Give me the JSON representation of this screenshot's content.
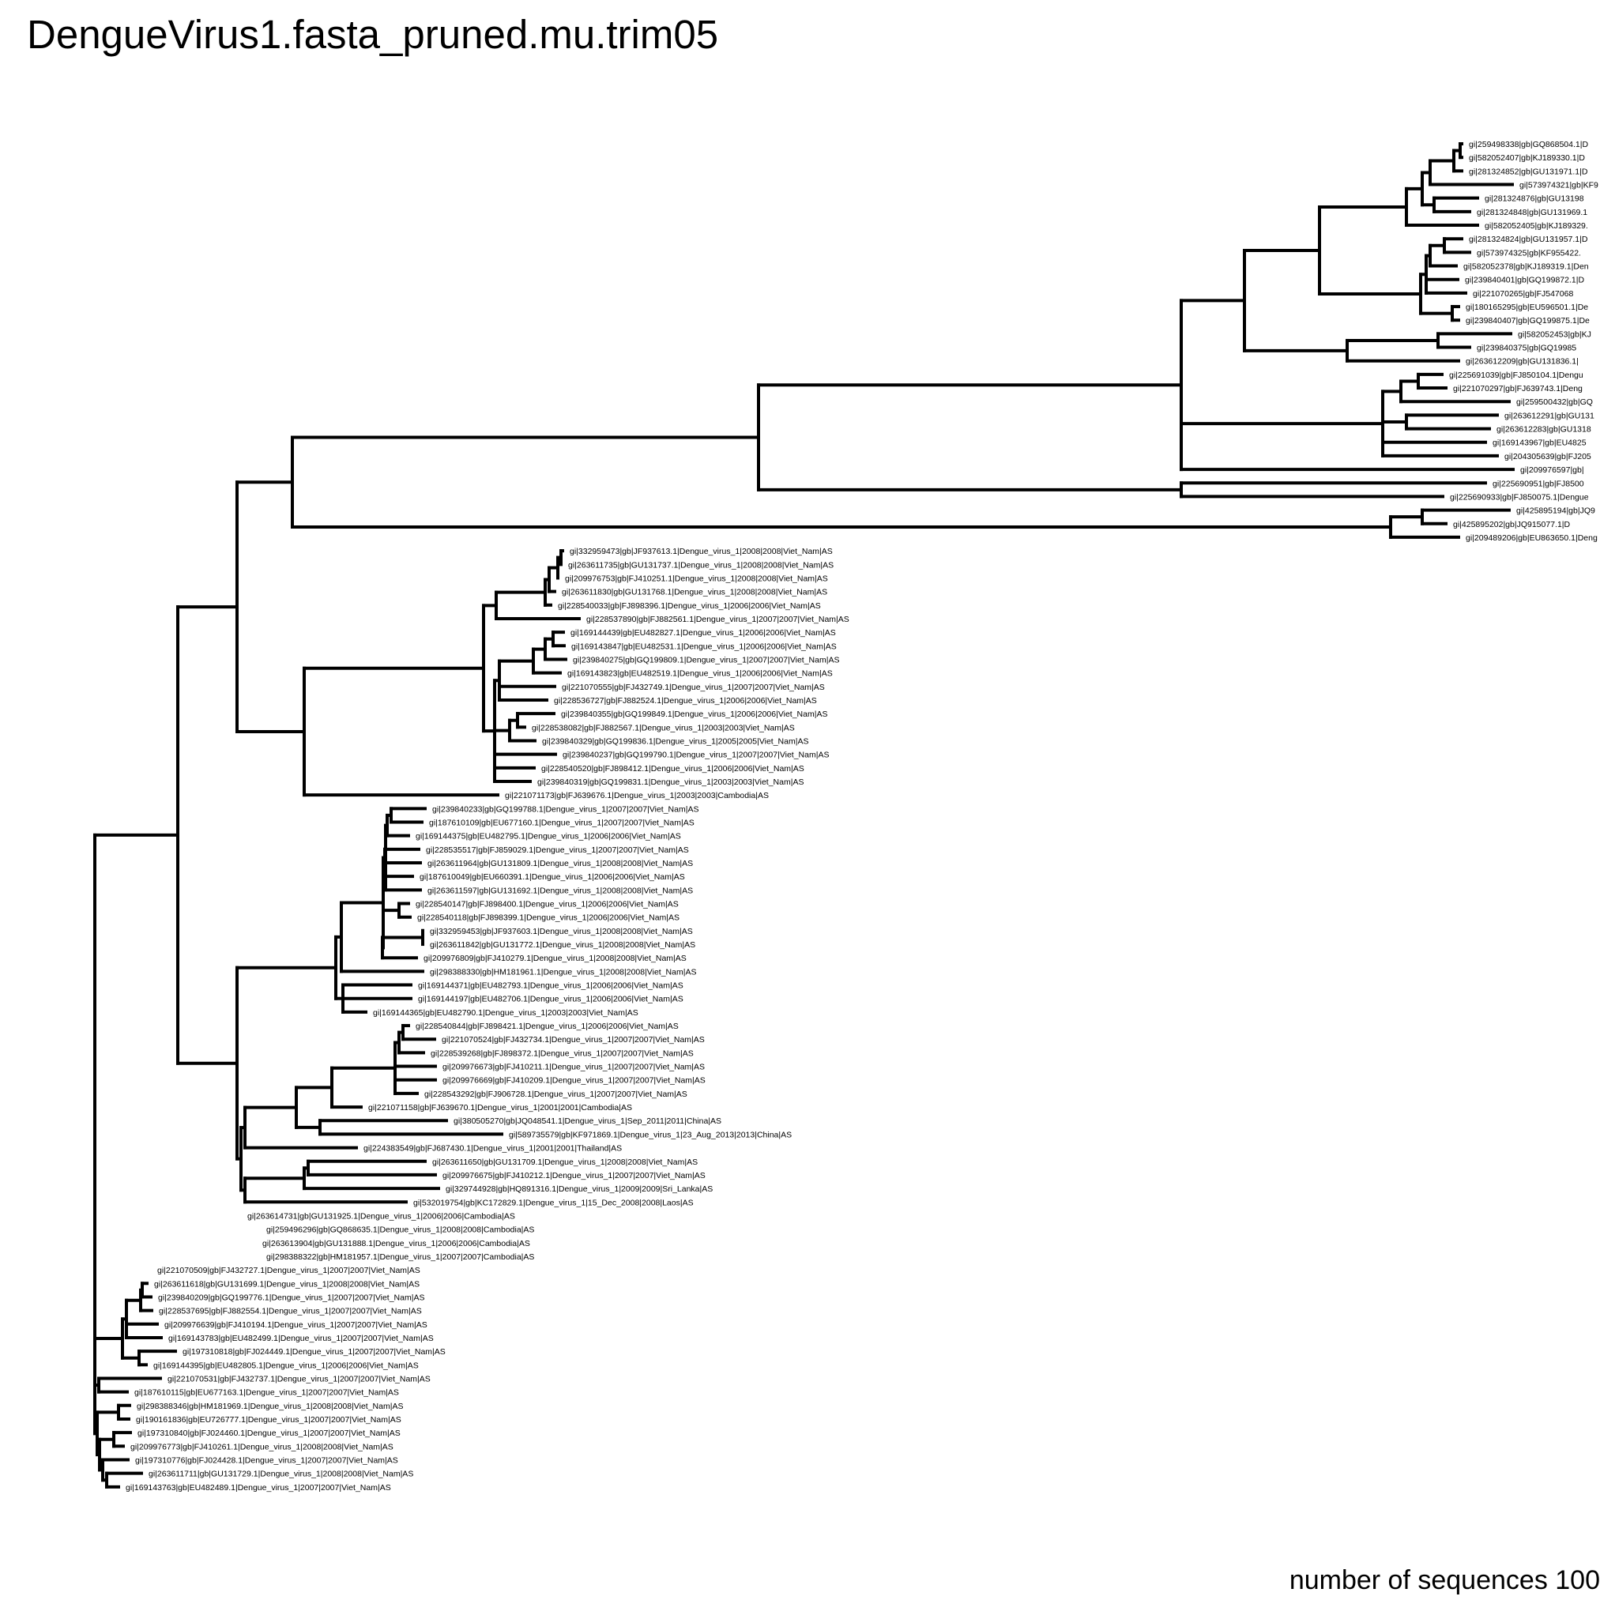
{
  "title": "DengueVirus1.fasta_pruned.mu.trim05",
  "footer": "number of sequences 100",
  "line_color": "#000000",
  "tips": [
    "gi|259498338|gb|GQ868504.1|D",
    "gi|582052407|gb|KJ189330.1|D",
    "gi|281324852|gb|GU131971.1|D",
    "gi|573974321|gb|KF9",
    "gi|281324876|gb|GU13198",
    "gi|281324848|gb|GU131969.1",
    "gi|582052405|gb|KJ189329.",
    "gi|281324824|gb|GU131957.1|D",
    "gi|573974325|gb|KF955422.",
    "gi|582052378|gb|KJ189319.1|Den",
    "gi|239840401|gb|GQ199872.1|D",
    "gi|221070265|gb|FJ547068",
    "gi|180165295|gb|EU596501.1|De",
    "gi|239840407|gb|GQ199875.1|De",
    "gi|582052453|gb|KJ",
    "gi|239840375|gb|GQ19985",
    "gi|263612209|gb|GU131836.1|",
    "gi|225691039|gb|FJ850104.1|Dengu",
    "gi|221070297|gb|FJ639743.1|Deng",
    "gi|259500432|gb|GQ",
    "gi|263612291|gb|GU131",
    "gi|263612283|gb|GU1318",
    "gi|169143967|gb|EU4825",
    "gi|204305639|gb|FJ205",
    "gi|209976597|gb|",
    "gi|225690951|gb|FJ8500",
    "gi|225690933|gb|FJ850075.1|Dengue",
    "gi|425895194|gb|JQ9",
    "gi|425895202|gb|JQ915077.1|D",
    "gi|209489206|gb|EU863650.1|Deng",
    "gi|332959473|gb|JF937613.1|Dengue_virus_1|2008|2008|Viet_Nam|AS",
    "gi|263611735|gb|GU131737.1|Dengue_virus_1|2008|2008|Viet_Nam|AS",
    "gi|209976753|gb|FJ410251.1|Dengue_virus_1|2008|2008|Viet_Nam|AS",
    "gi|263611830|gb|GU131768.1|Dengue_virus_1|2008|2008|Viet_Nam|AS",
    "gi|228540033|gb|FJ898396.1|Dengue_virus_1|2006|2006|Viet_Nam|AS",
    "gi|228537890|gb|FJ882561.1|Dengue_virus_1|2007|2007|Viet_Nam|AS",
    "gi|169144439|gb|EU482827.1|Dengue_virus_1|2006|2006|Viet_Nam|AS",
    "gi|169143847|gb|EU482531.1|Dengue_virus_1|2006|2006|Viet_Nam|AS",
    "gi|239840275|gb|GQ199809.1|Dengue_virus_1|2007|2007|Viet_Nam|AS",
    "gi|169143823|gb|EU482519.1|Dengue_virus_1|2006|2006|Viet_Nam|AS",
    "gi|221070555|gb|FJ432749.1|Dengue_virus_1|2007|2007|Viet_Nam|AS",
    "gi|228536727|gb|FJ882524.1|Dengue_virus_1|2006|2006|Viet_Nam|AS",
    "gi|239840355|gb|GQ199849.1|Dengue_virus_1|2006|2006|Viet_Nam|AS",
    "gi|228538082|gb|FJ882567.1|Dengue_virus_1|2003|2003|Viet_Nam|AS",
    "gi|239840329|gb|GQ199836.1|Dengue_virus_1|2005|2005|Viet_Nam|AS",
    "gi|239840237|gb|GQ199790.1|Dengue_virus_1|2007|2007|Viet_Nam|AS",
    "gi|228540520|gb|FJ898412.1|Dengue_virus_1|2006|2006|Viet_Nam|AS",
    "gi|239840319|gb|GQ199831.1|Dengue_virus_1|2003|2003|Viet_Nam|AS",
    "gi|221071173|gb|FJ639676.1|Dengue_virus_1|2003|2003|Cambodia|AS",
    "gi|239840233|gb|GQ199788.1|Dengue_virus_1|2007|2007|Viet_Nam|AS",
    "gi|187610109|gb|EU677160.1|Dengue_virus_1|2007|2007|Viet_Nam|AS",
    "gi|169144375|gb|EU482795.1|Dengue_virus_1|2006|2006|Viet_Nam|AS",
    "gi|228535517|gb|FJ859029.1|Dengue_virus_1|2007|2007|Viet_Nam|AS",
    "gi|263611964|gb|GU131809.1|Dengue_virus_1|2008|2008|Viet_Nam|AS",
    "gi|187610049|gb|EU660391.1|Dengue_virus_1|2006|2006|Viet_Nam|AS",
    "gi|263611597|gb|GU131692.1|Dengue_virus_1|2008|2008|Viet_Nam|AS",
    "gi|228540147|gb|FJ898400.1|Dengue_virus_1|2006|2006|Viet_Nam|AS",
    "gi|228540118|gb|FJ898399.1|Dengue_virus_1|2006|2006|Viet_Nam|AS",
    "gi|332959453|gb|JF937603.1|Dengue_virus_1|2008|2008|Viet_Nam|AS",
    "gi|263611842|gb|GU131772.1|Dengue_virus_1|2008|2008|Viet_Nam|AS",
    "gi|209976809|gb|FJ410279.1|Dengue_virus_1|2008|2008|Viet_Nam|AS",
    "gi|298388330|gb|HM181961.1|Dengue_virus_1|2008|2008|Viet_Nam|AS",
    "gi|169144371|gb|EU482793.1|Dengue_virus_1|2006|2006|Viet_Nam|AS",
    "gi|169144197|gb|EU482706.1|Dengue_virus_1|2006|2006|Viet_Nam|AS",
    "gi|169144365|gb|EU482790.1|Dengue_virus_1|2003|2003|Viet_Nam|AS",
    "gi|228540844|gb|FJ898421.1|Dengue_virus_1|2006|2006|Viet_Nam|AS",
    "gi|221070524|gb|FJ432734.1|Dengue_virus_1|2007|2007|Viet_Nam|AS",
    "gi|228539268|gb|FJ898372.1|Dengue_virus_1|2007|2007|Viet_Nam|AS",
    "gi|209976673|gb|FJ410211.1|Dengue_virus_1|2007|2007|Viet_Nam|AS",
    "gi|209976669|gb|FJ410209.1|Dengue_virus_1|2007|2007|Viet_Nam|AS",
    "gi|228543292|gb|FJ906728.1|Dengue_virus_1|2007|2007|Viet_Nam|AS",
    "gi|221071158|gb|FJ639670.1|Dengue_virus_1|2001|2001|Cambodia|AS",
    "gi|380505270|gb|JQ048541.1|Dengue_virus_1|Sep_2011|2011|China|AS",
    "gi|589735579|gb|KF971869.1|Dengue_virus_1|23_Aug_2013|2013|China|AS",
    "gi|224383549|gb|FJ687430.1|Dengue_virus_1|2001|2001|Thailand|AS",
    "gi|263611650|gb|GU131709.1|Dengue_virus_1|2008|2008|Viet_Nam|AS",
    "gi|209976675|gb|FJ410212.1|Dengue_virus_1|2007|2007|Viet_Nam|AS",
    "gi|329744928|gb|HQ891316.1|Dengue_virus_1|2009|2009|Sri_Lanka|AS",
    "gi|532019754|gb|KC172829.1|Dengue_virus_1|15_Dec_2008|2008|Laos|AS",
    "gi|263614731|gb|GU131925.1|Dengue_virus_1|2006|2006|Cambodia|AS",
    "gi|259496296|gb|GQ868635.1|Dengue_virus_1|2008|2008|Cambodia|AS",
    "gi|263613904|gb|GU131888.1|Dengue_virus_1|2006|2006|Cambodia|AS",
    "gi|298388322|gb|HM181957.1|Dengue_virus_1|2007|2007|Cambodia|AS",
    "gi|221070509|gb|FJ432727.1|Dengue_virus_1|2007|2007|Viet_Nam|AS",
    "gi|263611618|gb|GU131699.1|Dengue_virus_1|2008|2008|Viet_Nam|AS",
    "gi|239840209|gb|GQ199776.1|Dengue_virus_1|2007|2007|Viet_Nam|AS",
    "gi|228537695|gb|FJ882554.1|Dengue_virus_1|2007|2007|Viet_Nam|AS",
    "gi|209976639|gb|FJ410194.1|Dengue_virus_1|2007|2007|Viet_Nam|AS",
    "gi|169143783|gb|EU482499.1|Dengue_virus_1|2007|2007|Viet_Nam|AS",
    "gi|197310818|gb|FJ024449.1|Dengue_virus_1|2007|2007|Viet_Nam|AS",
    "gi|169144395|gb|EU482805.1|Dengue_virus_1|2006|2006|Viet_Nam|AS",
    "gi|221070531|gb|FJ432737.1|Dengue_virus_1|2007|2007|Viet_Nam|AS",
    "gi|187610115|gb|EU677163.1|Dengue_virus_1|2007|2007|Viet_Nam|AS",
    "gi|298388346|gb|HM181969.1|Dengue_virus_1|2008|2008|Viet_Nam|AS",
    "gi|190161836|gb|EU726777.1|Dengue_virus_1|2007|2007|Viet_Nam|AS",
    "gi|197310840|gb|FJ024460.1|Dengue_virus_1|2007|2007|Viet_Nam|AS",
    "gi|209976773|gb|FJ410261.1|Dengue_virus_1|2008|2008|Viet_Nam|AS",
    "gi|197310776|gb|FJ024428.1|Dengue_virus_1|2007|2007|Viet_Nam|AS",
    "gi|263611711|gb|GU131729.1|Dengue_virus_1|2008|2008|Viet_Nam|AS",
    "gi|169143763|gb|EU482489.1|Dengue_virus_1|2007|2007|Viet_Nam|AS"
  ]
}
